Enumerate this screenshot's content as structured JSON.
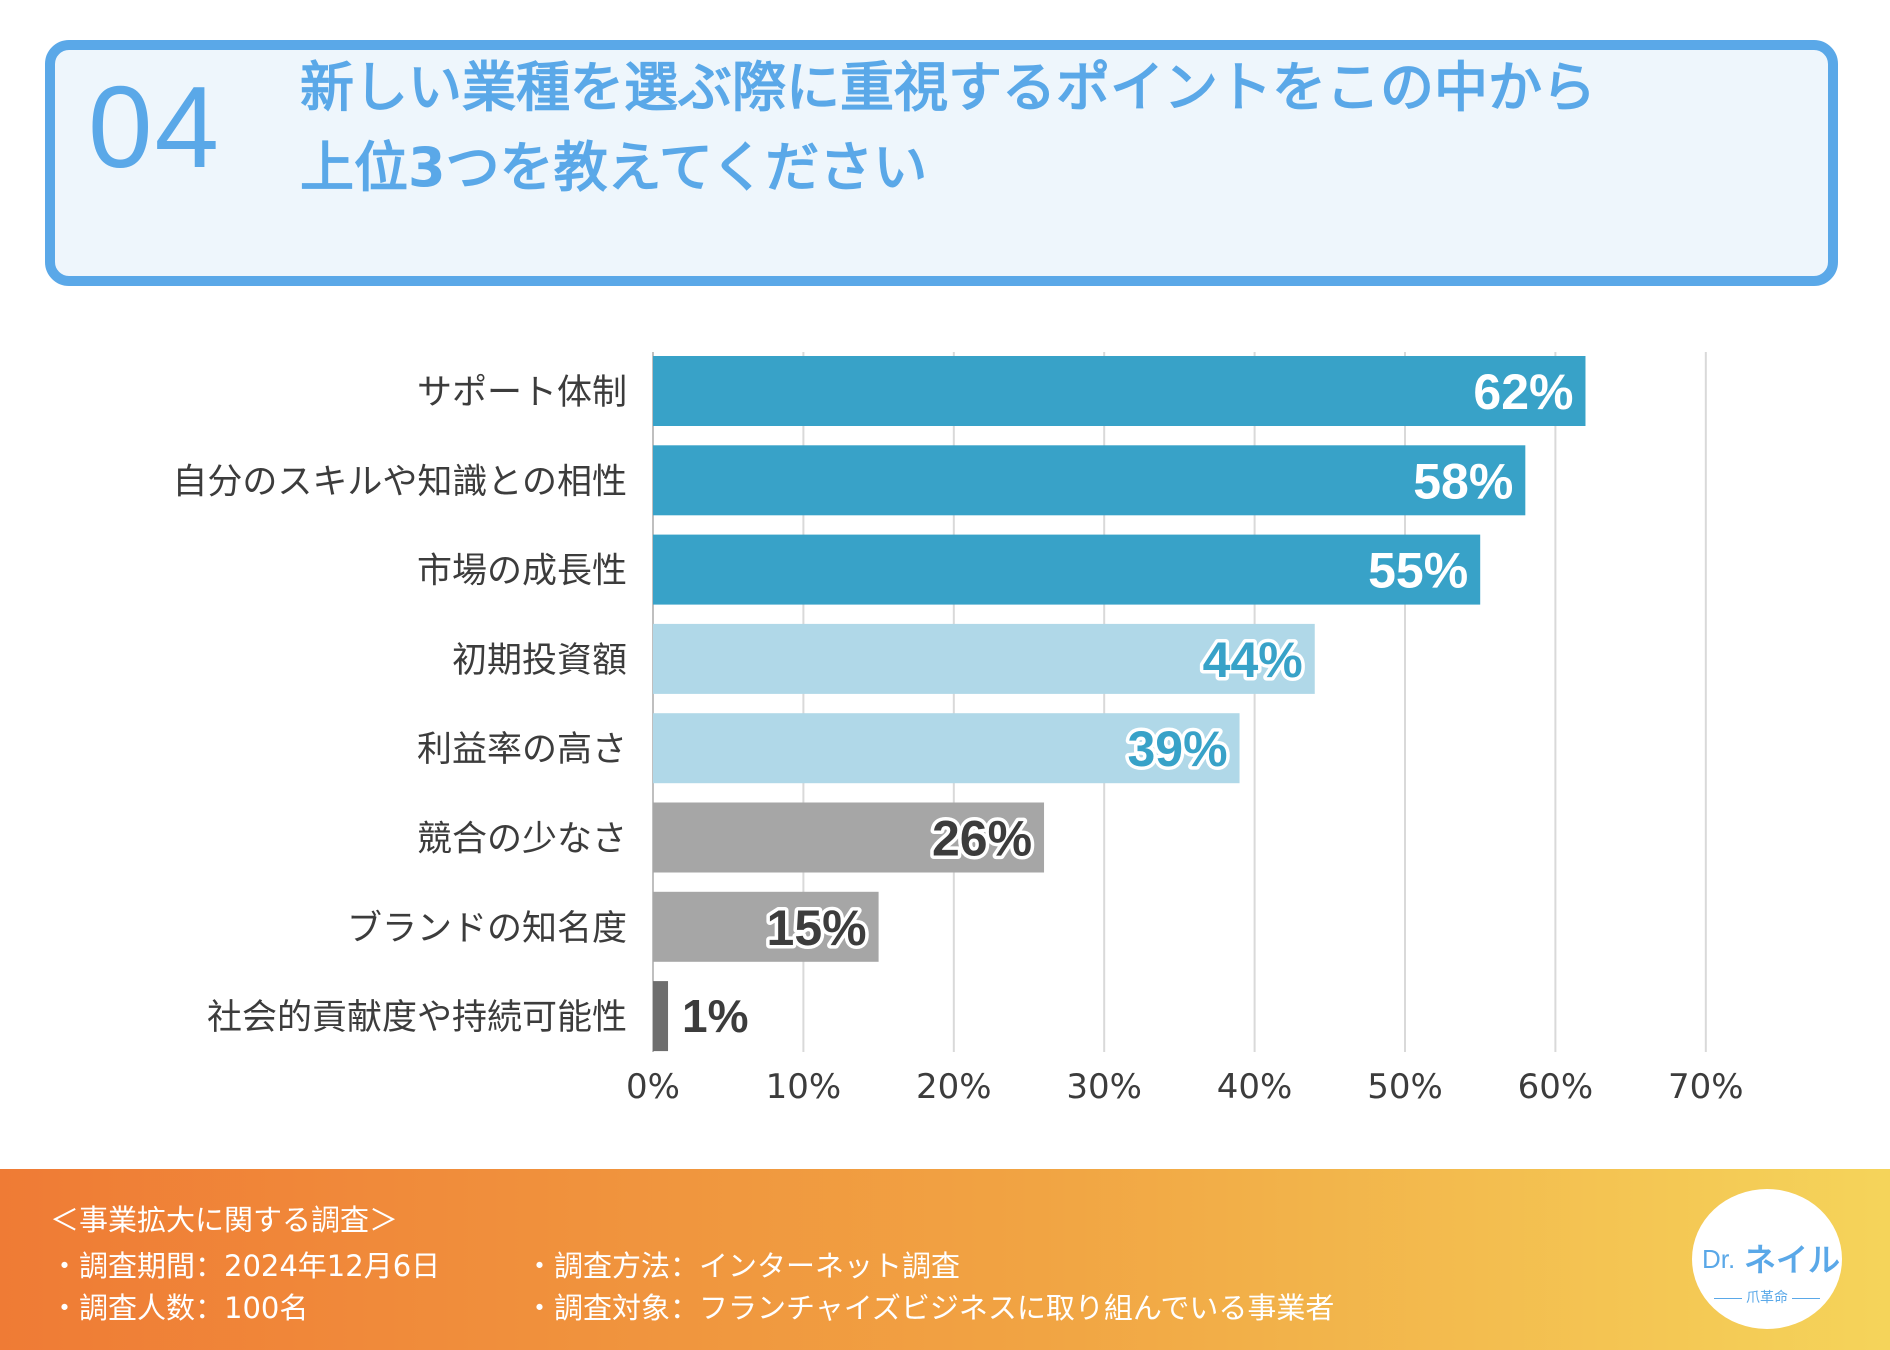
{
  "header": {
    "number": "04",
    "title_line1": "新しい業種を選ぶ際に重視するポイントをこの中から",
    "title_line2": "上位3つを教えてください"
  },
  "chart_data": {
    "type": "bar",
    "orientation": "horizontal",
    "categories": [
      "サポート体制",
      "自分のスキルや知識との相性",
      "市場の成長性",
      "初期投資額",
      "利益率の高さ",
      "競合の少なさ",
      "ブランドの知名度",
      "社会的貢献度や持続可能性"
    ],
    "values": [
      62,
      58,
      55,
      44,
      39,
      26,
      15,
      1
    ],
    "value_labels": [
      "62%",
      "58%",
      "55%",
      "44%",
      "39%",
      "26%",
      "15%",
      "1%"
    ],
    "xlim": [
      0,
      70
    ],
    "xticks": [
      "0%",
      "10%",
      "20%",
      "30%",
      "40%",
      "50%",
      "60%",
      "70%"
    ],
    "grid": true,
    "colors": {
      "top": "#38a2c8",
      "mid": "#b0d8e8",
      "low": "#a6a6a6",
      "least": "#6e6e6e",
      "label_top": "#ffffff",
      "label_mid": "#38a2c8",
      "label_low": "#3c3c3c"
    }
  },
  "footer": {
    "survey_title": "＜事業拡大に関する調査＞",
    "period": "・調査期間：2024年12月6日",
    "people": "・調査人数：100名",
    "method": "・調査方法：インターネット調査",
    "target": "・調査対象：フランチャイズビジネスに取り組んでいる事業者"
  },
  "logo": {
    "dr": "Dr.",
    "name": "ネイル",
    "sub": "爪革命"
  }
}
